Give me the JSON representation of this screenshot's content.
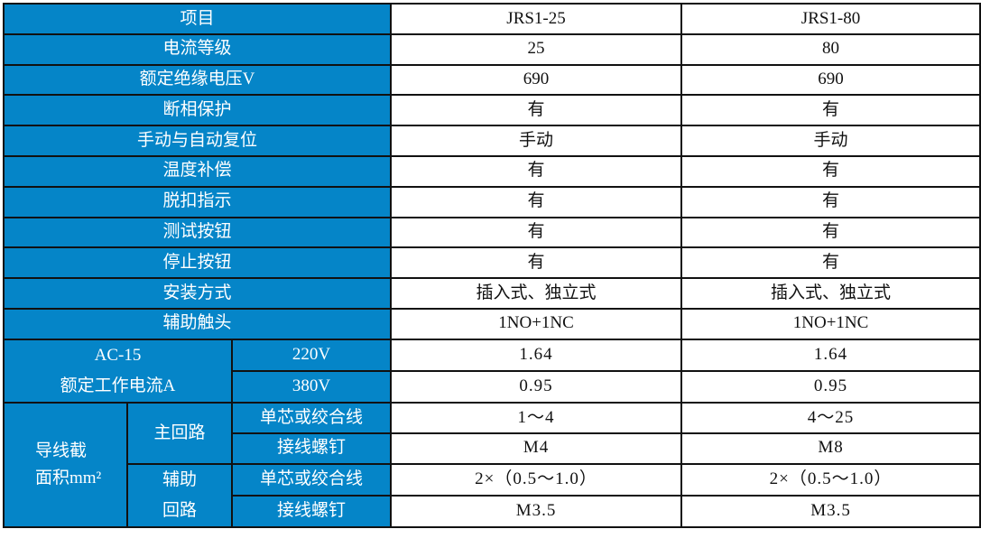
{
  "header": {
    "item": "项目",
    "models": [
      "JRS1-25",
      "JRS1-80"
    ]
  },
  "rows": [
    {
      "label": "电流等级",
      "values": [
        "25",
        "80"
      ]
    },
    {
      "label": "额定绝缘电压V",
      "values": [
        "690",
        "690"
      ]
    },
    {
      "label": "断相保护",
      "values": [
        "有",
        "有"
      ]
    },
    {
      "label": "手动与自动复位",
      "values": [
        "手动",
        "手动"
      ]
    },
    {
      "label": "温度补偿",
      "values": [
        "有",
        "有"
      ]
    },
    {
      "label": "脱扣指示",
      "values": [
        "有",
        "有"
      ]
    },
    {
      "label": "测试按钮",
      "values": [
        "有",
        "有"
      ]
    },
    {
      "label": "停止按钮",
      "values": [
        "有",
        "有"
      ]
    },
    {
      "label": "安装方式",
      "values": [
        "插入式、独立式",
        "插入式、独立式"
      ]
    },
    {
      "label": "辅助触头",
      "values": [
        "1NO+1NC",
        "1NO+1NC"
      ]
    }
  ],
  "ac15": {
    "label_line1": "AC-15",
    "label_line2": "额定工作电流A",
    "rows": [
      {
        "voltage": "220V",
        "values": [
          "1.64",
          "1.64"
        ]
      },
      {
        "voltage": "380V",
        "values": [
          "0.95",
          "0.95"
        ]
      }
    ]
  },
  "wire": {
    "label_line1": "导线截",
    "label_line2": "面积mm²",
    "main": {
      "label": "主回路",
      "rows": [
        {
          "label": "单芯或绞合线",
          "values": [
            "1～4",
            "4～25"
          ]
        },
        {
          "label": "接线螺钉",
          "values": [
            "M4",
            "M8"
          ]
        }
      ]
    },
    "aux": {
      "label_line1": "辅助",
      "label_line2": "回路",
      "rows": [
        {
          "label": "单芯或绞合线",
          "values": [
            "2×（0.5～1.0）",
            "2×（0.5～1.0）"
          ]
        },
        {
          "label": "接线螺钉",
          "values": [
            "M3.5",
            "M3.5"
          ]
        }
      ]
    }
  },
  "colors": {
    "header_bg": "#0585c8",
    "header_text": "#ffffff",
    "border": "#111111"
  }
}
